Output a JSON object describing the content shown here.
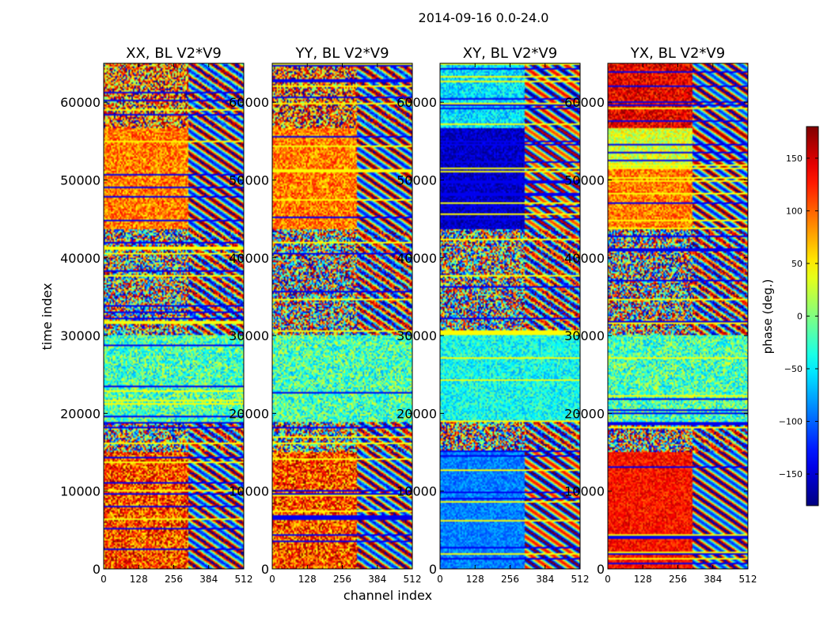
{
  "figure": {
    "suptitle": "2014-09-16 0.0-24.0"
  },
  "chart_data": {
    "type": "heatmap",
    "title": "2014-09-16 0.0-24.0",
    "xlabel": "channel index",
    "ylabel": "time index",
    "x_range": [
      0,
      512
    ],
    "y_range": [
      0,
      65000
    ],
    "x_ticks": [
      "0",
      "128",
      "256",
      "384",
      "512"
    ],
    "y_ticks": [
      "0",
      "10000",
      "20000",
      "30000",
      "40000",
      "50000",
      "60000"
    ],
    "y_tick_values": [
      0,
      10000,
      20000,
      30000,
      40000,
      50000,
      60000
    ],
    "x_tick_values": [
      0,
      128,
      256,
      384,
      512
    ],
    "panels": [
      {
        "title": "XX, BL V2*V9",
        "regime": "xx"
      },
      {
        "title": "YY, BL V2*V9",
        "regime": "yy"
      },
      {
        "title": "XY, BL V2*V9",
        "regime": "xy"
      },
      {
        "title": "YX, BL V2*V9",
        "regime": "yx"
      }
    ],
    "colorbar": {
      "label": "phase (deg.)",
      "range": [
        -180,
        180
      ],
      "ticks": [
        "150",
        "100",
        "50",
        "0",
        "−50",
        "−100",
        "−150"
      ],
      "tick_values": [
        150,
        100,
        50,
        0,
        -50,
        -100,
        -150
      ],
      "colormap": "jet"
    }
  }
}
